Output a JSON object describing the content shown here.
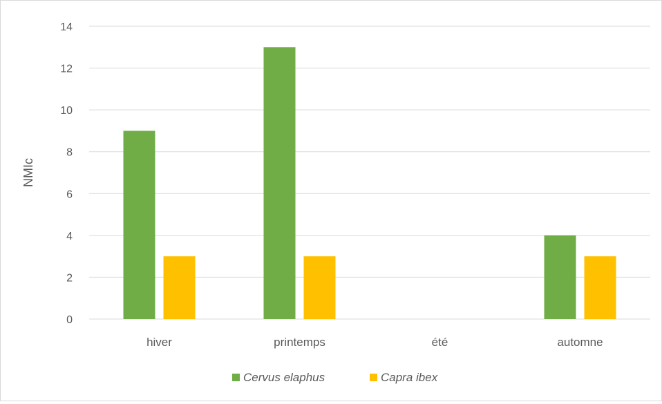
{
  "chart_data": {
    "type": "bar",
    "categories": [
      "hiver",
      "printemps",
      "été",
      "automne"
    ],
    "series": [
      {
        "name": "Cervus elaphus",
        "values": [
          9,
          13,
          0,
          4
        ],
        "color": "#70ad47"
      },
      {
        "name": "Capra ibex",
        "values": [
          3,
          3,
          0,
          3
        ],
        "color": "#ffc000"
      }
    ],
    "ylabel": "NMIc",
    "xlabel": "",
    "ylim": [
      0,
      14
    ],
    "yticks": [
      0,
      2,
      4,
      6,
      8,
      10,
      12,
      14
    ],
    "grid": true,
    "legend_position": "bottom",
    "colors": {
      "grid": "#d9d9d9",
      "text": "#595959"
    }
  }
}
